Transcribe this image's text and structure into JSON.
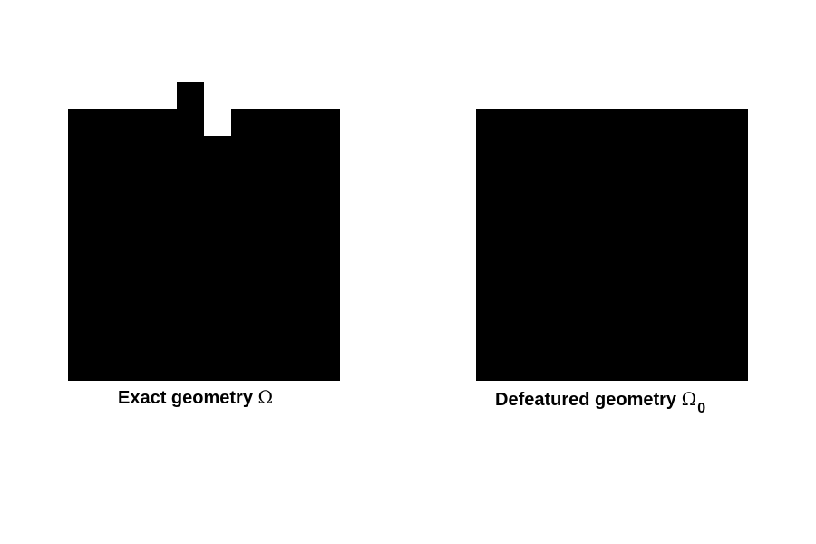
{
  "colors": {
    "background": "#ffffff",
    "shape_fill": "#000000"
  },
  "panels": {
    "exact": {
      "caption": "Exact geometry",
      "symbol": "Ω",
      "subscript": ""
    },
    "defeatured": {
      "caption": "Defeatured geometry",
      "symbol": "Ω",
      "subscript": "0"
    }
  }
}
